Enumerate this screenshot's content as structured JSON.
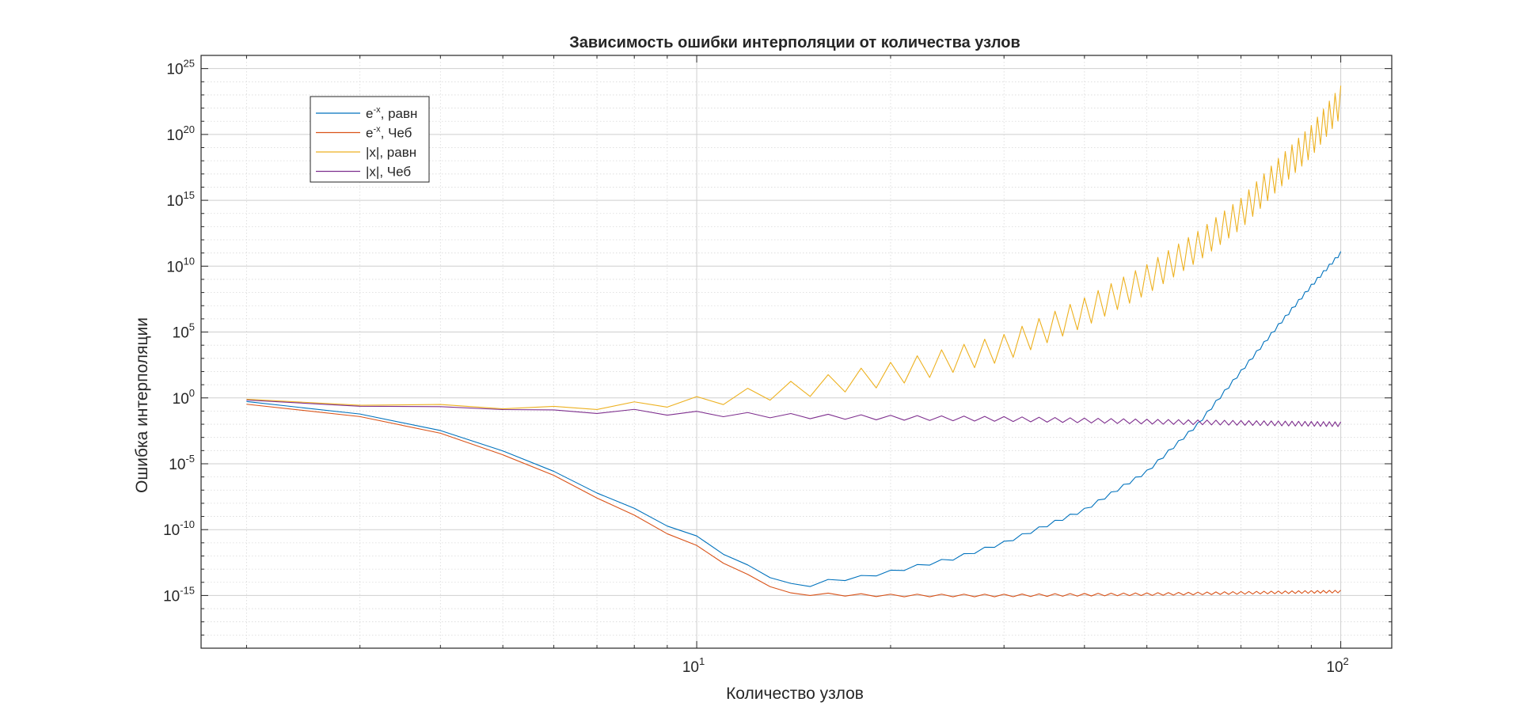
{
  "chart_data": {
    "type": "line",
    "title": "Зависимость ошибки интерполяции от количества узлов",
    "xlabel": "Количество узлов",
    "ylabel": "Ошибка интерполяции",
    "x_scale": "log",
    "y_scale": "log",
    "xlim": [
      1.7,
      120
    ],
    "ylim_exp": [
      -19,
      26
    ],
    "grid": true,
    "minor_grid": true,
    "legend_position": "top-left",
    "x_ticks": [
      {
        "value": 10,
        "base": "10",
        "exp": "1"
      },
      {
        "value": 100,
        "base": "10",
        "exp": "2"
      }
    ],
    "y_ticks": [
      {
        "value_exp": 25,
        "base": "10",
        "exp": "25"
      },
      {
        "value_exp": 20,
        "base": "10",
        "exp": "20"
      },
      {
        "value_exp": 15,
        "base": "10",
        "exp": "15"
      },
      {
        "value_exp": 10,
        "base": "10",
        "exp": "10"
      },
      {
        "value_exp": 5,
        "base": "10",
        "exp": "5"
      },
      {
        "value_exp": 0,
        "base": "10",
        "exp": "0"
      },
      {
        "value_exp": -5,
        "base": "10",
        "exp": "-5"
      },
      {
        "value_exp": -10,
        "base": "10",
        "exp": "-10"
      },
      {
        "value_exp": -15,
        "base": "10",
        "exp": "-15"
      }
    ],
    "series": [
      {
        "name": "e-x, равн",
        "legend_base": "e",
        "legend_sup": "-x",
        "legend_rest": ", равн",
        "color": "#0072BD",
        "x_range": [
          2,
          100
        ],
        "log10_error_knots": [
          [
            2,
            -0.3
          ],
          [
            3,
            -1.2
          ],
          [
            4,
            -2.5
          ],
          [
            5,
            -4.0
          ],
          [
            6,
            -5.6
          ],
          [
            7,
            -7.1
          ],
          [
            8,
            -8.5
          ],
          [
            10,
            -10.6
          ],
          [
            12,
            -12.8
          ],
          [
            14,
            -14.2
          ],
          [
            15,
            -14.2
          ],
          [
            16,
            -13.9
          ],
          [
            18,
            -13.6
          ],
          [
            20,
            -13.2
          ],
          [
            25,
            -12.2
          ],
          [
            30,
            -11.0
          ],
          [
            40,
            -8.5
          ],
          [
            50,
            -5.6
          ],
          [
            60,
            -2.0
          ],
          [
            70,
            2.0
          ],
          [
            80,
            5.5
          ],
          [
            90,
            8.5
          ],
          [
            100,
            11.0
          ]
        ],
        "oscillation_amplitude": 0.12
      },
      {
        "name": "e-x, Чеб",
        "legend_base": "e",
        "legend_sup": "-x",
        "legend_rest": ", Чеб",
        "color": "#D95319",
        "x_range": [
          2,
          100
        ],
        "log10_error_knots": [
          [
            2,
            -0.5
          ],
          [
            3,
            -1.4
          ],
          [
            4,
            -2.7
          ],
          [
            5,
            -4.3
          ],
          [
            6,
            -5.9
          ],
          [
            7,
            -7.5
          ],
          [
            8,
            -9.0
          ],
          [
            10,
            -11.3
          ],
          [
            12,
            -13.5
          ],
          [
            14,
            -14.9
          ],
          [
            15,
            -14.9
          ],
          [
            20,
            -15.0
          ],
          [
            30,
            -15.0
          ],
          [
            50,
            -14.9
          ],
          [
            70,
            -14.8
          ],
          [
            100,
            -14.7
          ]
        ],
        "oscillation_amplitude": 0.1
      },
      {
        "name": "|x|, равн",
        "legend_base": "|x|",
        "legend_sup": "",
        "legend_rest": ", равн",
        "color": "#EDB120",
        "x_range": [
          2,
          100
        ],
        "log10_error_knots": [
          [
            2,
            -0.1
          ],
          [
            3,
            -0.5
          ],
          [
            4,
            -0.6
          ],
          [
            5,
            -0.7
          ],
          [
            6,
            -0.8
          ],
          [
            7,
            -0.7
          ],
          [
            8,
            -0.5
          ],
          [
            10,
            -0.3
          ],
          [
            12,
            0.2
          ],
          [
            15,
            0.8
          ],
          [
            20,
            1.8
          ],
          [
            30,
            3.8
          ],
          [
            40,
            6.5
          ],
          [
            50,
            9.0
          ],
          [
            60,
            11.5
          ],
          [
            70,
            14.0
          ],
          [
            80,
            17.0
          ],
          [
            90,
            19.5
          ],
          [
            100,
            22.5
          ]
        ],
        "oscillation_amplitude_knots": [
          [
            2,
            0
          ],
          [
            8,
            0.2
          ],
          [
            10,
            0.4
          ],
          [
            20,
            0.9
          ],
          [
            40,
            1.1
          ],
          [
            100,
            1.2
          ]
        ]
      },
      {
        "name": "|x|, Чеб",
        "legend_base": "|x|",
        "legend_sup": "",
        "legend_rest": ", Чеб",
        "color": "#7E2F8E",
        "x_range": [
          2,
          100
        ],
        "log10_error_knots": [
          [
            2,
            -0.2
          ],
          [
            3,
            -0.6
          ],
          [
            4,
            -0.7
          ],
          [
            5,
            -0.85
          ],
          [
            6,
            -0.95
          ],
          [
            8,
            -1.05
          ],
          [
            10,
            -1.2
          ],
          [
            15,
            -1.4
          ],
          [
            20,
            -1.5
          ],
          [
            30,
            -1.6
          ],
          [
            50,
            -1.8
          ],
          [
            100,
            -2.0
          ]
        ],
        "oscillation_amplitude": 0.18
      }
    ]
  }
}
